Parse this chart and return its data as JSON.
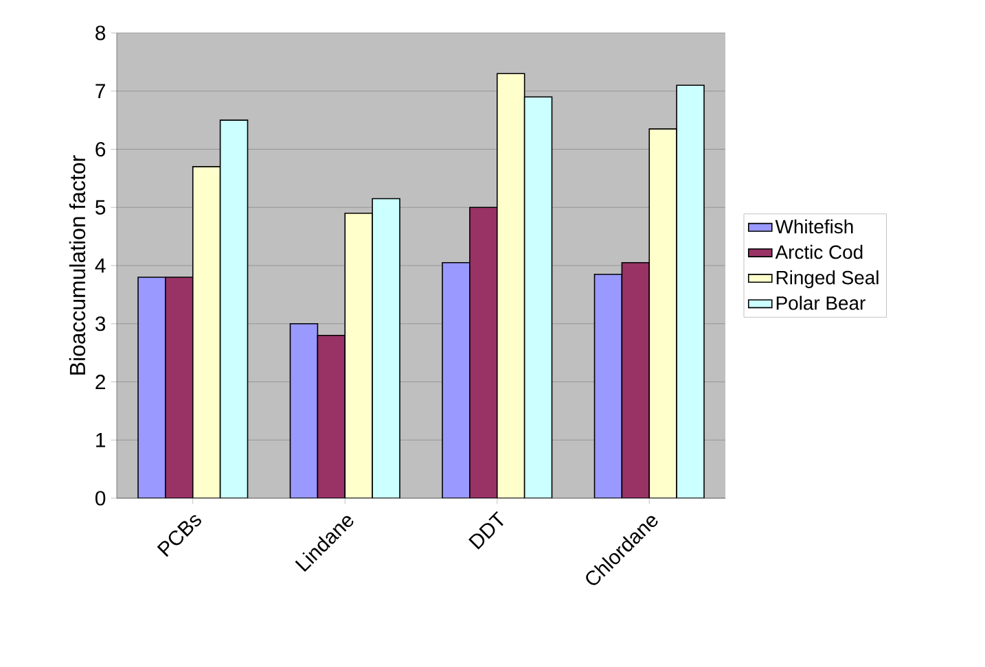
{
  "chart_data": {
    "type": "bar",
    "ylabel": "Bioaccumulation factor",
    "categories": [
      "PCBs",
      "Lindane",
      "DDT",
      "Chlordane"
    ],
    "series": [
      {
        "name": "Whitefish",
        "color": "#9999ff",
        "values": [
          3.8,
          3.0,
          4.05,
          3.85
        ]
      },
      {
        "name": "Arctic Cod",
        "color": "#993366",
        "values": [
          3.8,
          2.8,
          5.0,
          4.05
        ]
      },
      {
        "name": "Ringed Seal",
        "color": "#ffffcc",
        "values": [
          5.7,
          4.9,
          7.3,
          6.35
        ]
      },
      {
        "name": "Polar Bear",
        "color": "#ccffff",
        "values": [
          6.5,
          5.15,
          6.9,
          7.1
        ]
      }
    ],
    "ylim": [
      0,
      8
    ],
    "yticks": [
      0,
      1,
      2,
      3,
      4,
      5,
      6,
      7,
      8
    ],
    "grid": "y",
    "legend": "right"
  }
}
